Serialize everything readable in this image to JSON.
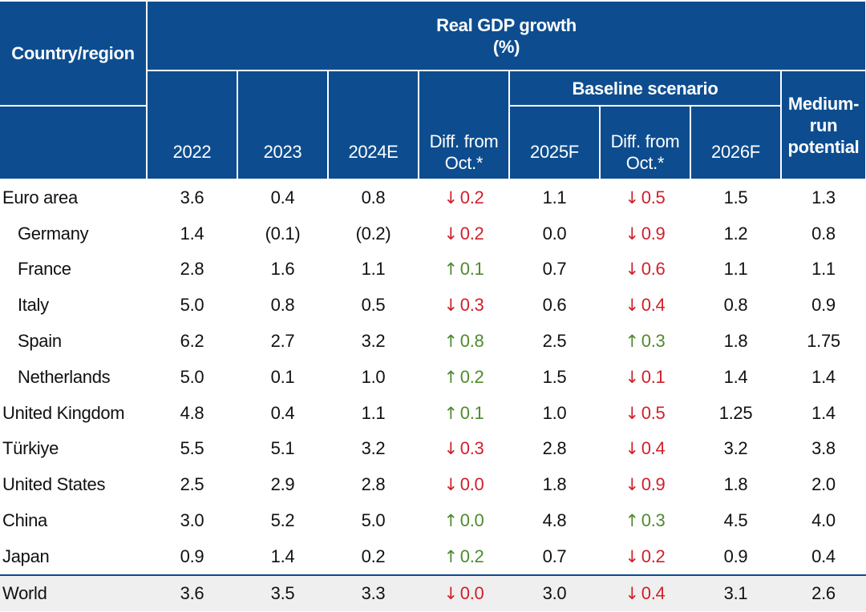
{
  "header": {
    "country_label": "Country/region",
    "title_line1": "Real GDP growth",
    "title_line2": "(%)",
    "baseline_label": "Baseline scenario",
    "mrp_line1": "Medium-",
    "mrp_line2": "run",
    "mrp_line3": "potential",
    "col_2022": "2022",
    "col_2023": "2023",
    "col_2024": "2024E",
    "col_diff1_line1": "Diff. from",
    "col_diff1_line2": "Oct.*",
    "col_2025": "2025F",
    "col_diff2_line1": "Diff. from",
    "col_diff2_line2": "Oct.*",
    "col_2026": "2026F"
  },
  "colors": {
    "header_bg": "#0d4d8f",
    "down": "#d0202a",
    "up": "#4f8a2c",
    "world_row_bg": "#efefef"
  },
  "arrow_glyphs": {
    "up": "↑",
    "down": "↓"
  },
  "rows": [
    {
      "name": "Euro area",
      "indent": false,
      "y2022": "3.6",
      "y2023": "0.4",
      "y2024": "0.8",
      "diff1_dir": "down",
      "diff1": "0.2",
      "y2025": "1.1",
      "diff2_dir": "down",
      "diff2": "0.5",
      "y2026": "1.5",
      "mrp": "1.3"
    },
    {
      "name": "Germany",
      "indent": true,
      "y2022": "1.4",
      "y2023": "(0.1)",
      "y2024": "(0.2)",
      "diff1_dir": "down",
      "diff1": "0.2",
      "y2025": "0.0",
      "diff2_dir": "down",
      "diff2": "0.9",
      "y2026": "1.2",
      "mrp": "0.8"
    },
    {
      "name": "France",
      "indent": true,
      "y2022": "2.8",
      "y2023": "1.6",
      "y2024": "1.1",
      "diff1_dir": "up",
      "diff1": "0.1",
      "y2025": "0.7",
      "diff2_dir": "down",
      "diff2": "0.6",
      "y2026": "1.1",
      "mrp": "1.1"
    },
    {
      "name": "Italy",
      "indent": true,
      "y2022": "5.0",
      "y2023": "0.8",
      "y2024": "0.5",
      "diff1_dir": "down",
      "diff1": "0.3",
      "y2025": "0.6",
      "diff2_dir": "down",
      "diff2": "0.4",
      "y2026": "0.8",
      "mrp": "0.9"
    },
    {
      "name": "Spain",
      "indent": true,
      "y2022": "6.2",
      "y2023": "2.7",
      "y2024": "3.2",
      "diff1_dir": "up",
      "diff1": "0.8",
      "y2025": "2.5",
      "diff2_dir": "up",
      "diff2": "0.3",
      "y2026": "1.8",
      "mrp": "1.75"
    },
    {
      "name": "Netherlands",
      "indent": true,
      "y2022": "5.0",
      "y2023": "0.1",
      "y2024": "1.0",
      "diff1_dir": "up",
      "diff1": "0.2",
      "y2025": "1.5",
      "diff2_dir": "down",
      "diff2": "0.1",
      "y2026": "1.4",
      "mrp": "1.4"
    },
    {
      "name": "United Kingdom",
      "indent": false,
      "y2022": "4.8",
      "y2023": "0.4",
      "y2024": "1.1",
      "diff1_dir": "up",
      "diff1": "0.1",
      "y2025": "1.0",
      "diff2_dir": "down",
      "diff2": "0.5",
      "y2026": "1.25",
      "mrp": "1.4"
    },
    {
      "name": "Türkiye",
      "indent": false,
      "y2022": "5.5",
      "y2023": "5.1",
      "y2024": "3.2",
      "diff1_dir": "down",
      "diff1": "0.3",
      "y2025": "2.8",
      "diff2_dir": "down",
      "diff2": "0.4",
      "y2026": "3.2",
      "mrp": "3.8"
    },
    {
      "name": "United States",
      "indent": false,
      "y2022": "2.5",
      "y2023": "2.9",
      "y2024": "2.8",
      "diff1_dir": "down",
      "diff1": "0.0",
      "y2025": "1.8",
      "diff2_dir": "down",
      "diff2": "0.9",
      "y2026": "1.8",
      "mrp": "2.0"
    },
    {
      "name": "China",
      "indent": false,
      "y2022": "3.0",
      "y2023": "5.2",
      "y2024": "5.0",
      "diff1_dir": "up",
      "diff1": "0.0",
      "y2025": "4.8",
      "diff2_dir": "up",
      "diff2": "0.3",
      "y2026": "4.5",
      "mrp": "4.0"
    },
    {
      "name": "Japan",
      "indent": false,
      "y2022": "0.9",
      "y2023": "1.4",
      "y2024": "0.2",
      "diff1_dir": "up",
      "diff1": "0.2",
      "y2025": "0.7",
      "diff2_dir": "down",
      "diff2": "0.2",
      "y2026": "0.9",
      "mrp": "0.4"
    },
    {
      "name": "World",
      "indent": false,
      "y2022": "3.6",
      "y2023": "3.5",
      "y2024": "3.3",
      "diff1_dir": "down",
      "diff1": "0.0",
      "y2025": "3.0",
      "diff2_dir": "down",
      "diff2": "0.4",
      "y2026": "3.1",
      "mrp": "2.6"
    }
  ]
}
